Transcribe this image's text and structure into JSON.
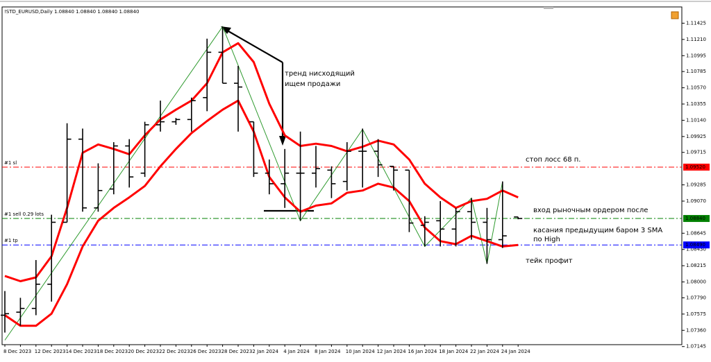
{
  "chart_data": {
    "type": "ohlc",
    "title": "!STD_EURUSD,Daily  1.08840 1.08840 1.08840 1.08840",
    "color": "#000000",
    "categories": [
      "8 Dec 2023",
      null,
      "12 Dec 2023",
      null,
      "14 Dec 2023",
      null,
      "18 Dec 2023",
      null,
      "20 Dec 2023",
      null,
      "22 Dec 2023",
      null,
      "26 Dec 2023",
      null,
      "28 Dec 2023",
      null,
      "2 Jan 2024",
      null,
      "4 Jan 2024",
      null,
      "8 Jan 2024",
      null,
      "10 Jan 2024",
      null,
      "12 Jan 2024",
      null,
      "16 Jan 2024",
      null,
      "18 Jan 2024",
      null,
      "22 Jan 2024",
      null,
      "24 Jan 2024",
      null
    ],
    "open": [
      1.0756,
      1.076,
      1.0765,
      1.0797,
      1.0879,
      1.0989,
      1.0898,
      1.0923,
      1.098,
      1.0944,
      1.1008,
      1.1012,
      1.1015,
      1.1044,
      1.1104,
      1.1063,
      1.1012,
      1.0944,
      1.093,
      1.0944,
      1.0944,
      1.0948,
      1.0933,
      1.0973,
      1.0973,
      1.0953,
      1.0948,
      1.0875,
      1.0881,
      1.087,
      1.0893,
      1.0879,
      1.0856,
      1.0886
    ],
    "high": [
      1.0788,
      1.0779,
      1.0829,
      1.0889,
      1.101,
      1.1003,
      1.0957,
      1.0985,
      1.0989,
      1.1012,
      1.104,
      1.1017,
      1.1044,
      1.1122,
      1.1138,
      1.1086,
      1.1012,
      1.0962,
      1.0976,
      1.0999,
      1.098,
      1.0953,
      1.0985,
      1.1003,
      1.0989,
      1.0953,
      1.0948,
      1.0887,
      1.0907,
      1.0898,
      1.0911,
      1.0898,
      1.0933,
      1.0886
    ],
    "low": [
      1.0733,
      1.0742,
      1.0756,
      1.0774,
      1.0879,
      1.0893,
      1.0893,
      1.0916,
      1.0925,
      1.0939,
      1.0999,
      1.1008,
      1.0999,
      1.1026,
      1.1063,
      1.0999,
      1.0939,
      1.0916,
      1.0898,
      1.0881,
      1.0925,
      1.0911,
      1.0921,
      1.0925,
      1.0939,
      1.0921,
      1.0866,
      1.0847,
      1.0847,
      1.0847,
      1.0856,
      1.0824,
      1.0845,
      1.0883
    ],
    "close": [
      1.0758,
      1.0765,
      1.0797,
      1.0879,
      1.0989,
      1.0898,
      1.0921,
      1.098,
      1.0939,
      1.1008,
      1.1012,
      1.1015,
      1.104,
      1.1104,
      1.1063,
      1.1058,
      1.0944,
      1.093,
      1.0944,
      1.0944,
      1.095,
      1.093,
      1.0973,
      1.0973,
      1.0955,
      1.0948,
      1.0878,
      1.0879,
      1.087,
      1.0893,
      1.0879,
      1.0856,
      1.0861,
      1.0884
    ],
    "ma": [
      {
        "color": "#ff0000",
        "values": [
          1.0808,
          1.0801,
          1.0806,
          1.0834,
          1.0898,
          1.0971,
          1.0982,
          1.0976,
          1.0969,
          1.0994,
          1.1015,
          1.1028,
          1.104,
          1.1063,
          1.1104,
          1.1116,
          1.1091,
          1.1036,
          1.0994,
          1.098,
          1.0983,
          1.098,
          1.0973,
          1.0979,
          1.0987,
          1.0982,
          1.0962,
          1.093,
          1.0912,
          1.0898,
          1.0907,
          1.091,
          1.0921,
          1.0912
        ]
      },
      {
        "color": "#ff0000",
        "values": [
          1.0756,
          1.0742,
          1.0742,
          1.0758,
          1.0797,
          1.0847,
          1.0881,
          1.0898,
          1.0912,
          1.0927,
          1.0953,
          1.0976,
          1.0997,
          1.1013,
          1.1028,
          1.104,
          1.0999,
          1.0939,
          1.0912,
          1.0893,
          1.0901,
          1.0904,
          1.0918,
          1.0921,
          1.093,
          1.0925,
          1.0907,
          1.0872,
          1.0854,
          1.085,
          1.0861,
          1.0854,
          1.0847,
          1.0849
        ]
      }
    ],
    "zigzag": {
      "color": "#2e9a2e",
      "bars": [
        0,
        14,
        19,
        23,
        27,
        30,
        31,
        32
      ],
      "values": [
        1.0723,
        1.1138,
        1.0881,
        1.1002,
        1.0847,
        1.0911,
        1.0824,
        1.0933
      ]
    },
    "levels": [
      {
        "label": "#1 sl",
        "value": 1.0952,
        "value_label": "1.09520",
        "color": "#ff0000"
      },
      {
        "label": "#1 sell 0.29 lots",
        "value": 1.0884,
        "value_label": "1.08840",
        "color": "#008000"
      },
      {
        "label": "#1 tp",
        "value": 1.0849,
        "value_label": "1.08490",
        "color": "#0000ff"
      }
    ],
    "annotations": [
      "тренд нисходящий",
      "ищем продажи",
      "стоп лосс   68 п.",
      "вход рыночным ордером после",
      "касания предыдущим баром 3 SMA",
      "по High",
      "тейк профит"
    ],
    "ylim": [
      1.0717,
      1.1164
    ],
    "yticks": [
      {
        "value": 1.11425,
        "label": "1.11425"
      },
      {
        "value": 1.1121,
        "label": "1.11210"
      },
      {
        "value": 1.10995,
        "label": "1.10995"
      },
      {
        "value": 1.10785,
        "label": "1.10785"
      },
      {
        "value": 1.1057,
        "label": "1.10570"
      },
      {
        "value": 1.10355,
        "label": "1.10355"
      },
      {
        "value": 1.1014,
        "label": "1.10140"
      },
      {
        "value": 1.09925,
        "label": "1.09925"
      },
      {
        "value": 1.09715,
        "label": "1.09715"
      },
      {
        "value": 1.09285,
        "label": "1.09285"
      },
      {
        "value": 1.0907,
        "label": "1.09070"
      },
      {
        "value": 1.08645,
        "label": "1.08645"
      },
      {
        "value": 1.0843,
        "label": "1.08430"
      },
      {
        "value": 1.08215,
        "label": "1.08215"
      },
      {
        "value": 1.08,
        "label": "1.08000"
      },
      {
        "value": 1.0779,
        "label": "1.07790"
      },
      {
        "value": 1.07575,
        "label": "1.07575"
      },
      {
        "value": 1.0736,
        "label": "1.07360"
      },
      {
        "value": 1.07145,
        "label": "1.07145"
      }
    ]
  }
}
